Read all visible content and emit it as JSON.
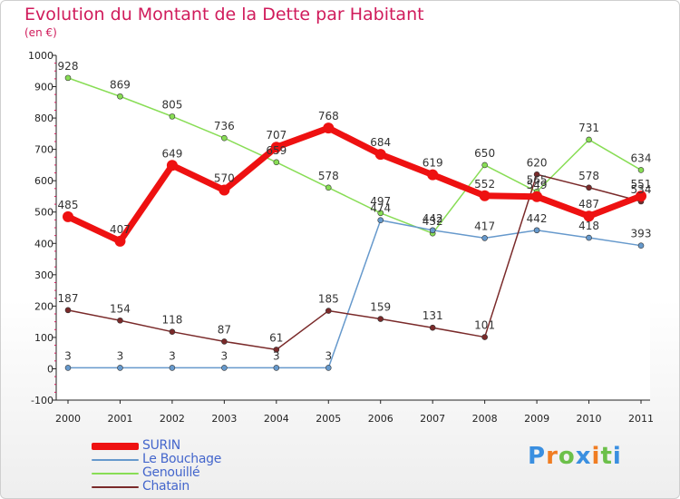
{
  "title": "Evolution du Montant de la Dette par Habitant",
  "subtitle": "(en €)",
  "logo": {
    "text": "Proxiti",
    "colors": [
      "#3a8fe0",
      "#f07d22",
      "#6cc04a",
      "#3a8fe0",
      "#f07d22",
      "#6cc04a",
      "#3a8fe0"
    ]
  },
  "chart_data": {
    "type": "line",
    "title": "Evolution du Montant de la Dette par Habitant",
    "subtitle": "(en €)",
    "categories": [
      "2000",
      "2001",
      "2002",
      "2003",
      "2004",
      "2005",
      "2006",
      "2007",
      "2008",
      "2009",
      "2010",
      "2011"
    ],
    "yticks": [
      "-100",
      "0",
      "100",
      "200",
      "300",
      "400",
      "500",
      "600",
      "700",
      "800",
      "900",
      "1000"
    ],
    "ylim": [
      -100,
      1000
    ],
    "grid": false,
    "legend_position": "bottom-left",
    "series": [
      {
        "name": "SURIN",
        "color": "#ee1111",
        "width": 7,
        "values": [
          485,
          407,
          649,
          570,
          707,
          768,
          684,
          619,
          552,
          549,
          487,
          551
        ],
        "labels": [
          "485",
          "407",
          "649",
          "570",
          "707",
          "768",
          "684",
          "619",
          "552",
          "549",
          "487",
          "551"
        ]
      },
      {
        "name": "Le Bouchage",
        "color": "#6699cc",
        "width": 1.5,
        "values": [
          3,
          3,
          3,
          3,
          3,
          3,
          474,
          442,
          417,
          442,
          418,
          393
        ],
        "labels": [
          "3",
          "3",
          "3",
          "3",
          "3",
          "3",
          "474",
          "442",
          "417",
          "442",
          "418",
          "393"
        ]
      },
      {
        "name": "Genouillé",
        "color": "#88dd55",
        "width": 1.5,
        "values": [
          928,
          869,
          805,
          736,
          659,
          578,
          497,
          432,
          650,
          565,
          731,
          634
        ],
        "labels": [
          "928",
          "869",
          "805",
          "736",
          "659",
          "578",
          "497",
          "432",
          "650",
          "565",
          "731",
          "634"
        ]
      },
      {
        "name": "Chatain",
        "color": "#7a2a2a",
        "width": 1.5,
        "values": [
          187,
          154,
          118,
          87,
          61,
          185,
          159,
          131,
          101,
          620,
          578,
          534
        ],
        "labels": [
          "187",
          "154",
          "118",
          "87",
          "61",
          "185",
          "159",
          "131",
          "101",
          "620",
          "578",
          "534"
        ]
      }
    ]
  }
}
